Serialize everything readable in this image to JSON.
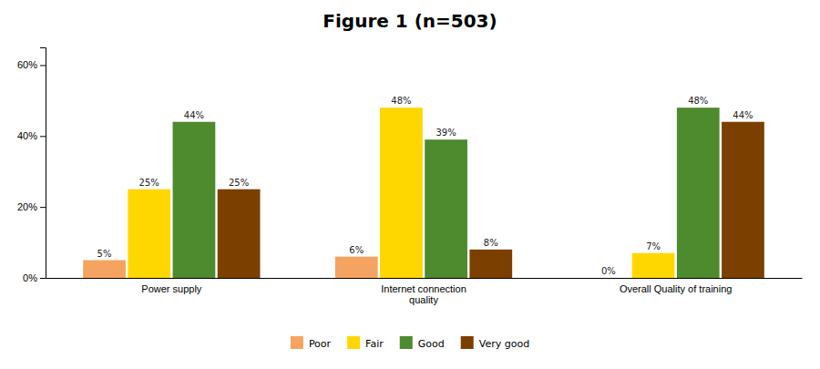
{
  "chart_data": {
    "type": "bar",
    "title": "Figure 1 (n=503)",
    "categories": [
      "Power supply",
      "Internet connection\nquality",
      "Overall Quality of training"
    ],
    "series": [
      {
        "name": "Poor",
        "color": "#F4A460",
        "values": [
          5,
          6,
          0
        ],
        "value_labels": [
          "5%",
          "6%",
          "0%"
        ]
      },
      {
        "name": "Fair",
        "color": "#FFD700",
        "values": [
          25,
          48,
          7
        ],
        "value_labels": [
          "25%",
          "48%",
          "7%"
        ]
      },
      {
        "name": "Good",
        "color": "#4E8A2E",
        "values": [
          44,
          39,
          48
        ],
        "value_labels": [
          "44%",
          "39%",
          "48%"
        ]
      },
      {
        "name": "Very good",
        "color": "#7B3F00",
        "values": [
          25,
          8,
          44
        ],
        "value_labels": [
          "25%",
          "8%",
          "44%"
        ]
      }
    ],
    "ylim": [
      0,
      65
    ],
    "yticks": [
      {
        "value": 0,
        "label": "0%"
      },
      {
        "value": 20,
        "label": "20%"
      },
      {
        "value": 40,
        "label": "40%"
      },
      {
        "value": 60,
        "label": "60%"
      }
    ],
    "data_labels": true,
    "grid": false,
    "legend": "bottom"
  }
}
